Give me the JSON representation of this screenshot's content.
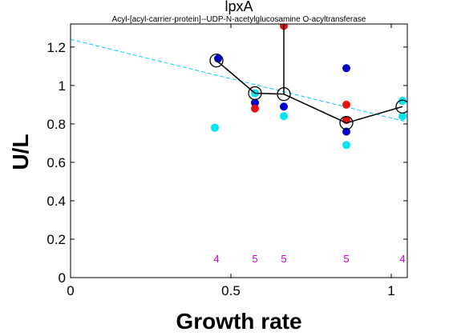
{
  "chart_data": {
    "type": "scatter",
    "title": "lpxA",
    "subtitle": "Acyl-[acyl-carrier-protein]--UDP-N-acetylglucosamine O-acyltransferase",
    "xlabel": "Growth rate",
    "ylabel": "U/L",
    "xlim": [
      0,
      1.05
    ],
    "ylim": [
      0,
      1.32
    ],
    "xticks": [
      0,
      0.5,
      1
    ],
    "xtick_labels": [
      "0",
      "0.5",
      "1"
    ],
    "yticks": [
      0,
      0.2,
      0.4,
      0.6,
      0.8,
      1,
      1.2
    ],
    "ytick_labels": [
      "0",
      "0.2",
      "0.4",
      "0.6",
      "0.8",
      "1",
      "1.2"
    ],
    "grid": false,
    "series": [
      {
        "style": "points",
        "color": "#0000cc",
        "points": [
          [
            0.46,
            1.14
          ],
          [
            0.575,
            0.91
          ],
          [
            0.665,
            0.89
          ],
          [
            0.86,
            0.76
          ],
          [
            0.86,
            1.09
          ]
        ]
      },
      {
        "style": "points",
        "color": "#e81010",
        "points": [
          [
            0.575,
            0.88
          ],
          [
            0.665,
            1.31
          ],
          [
            0.665,
            1.33
          ],
          [
            0.86,
            0.9
          ],
          [
            0.86,
            0.82
          ]
        ]
      },
      {
        "style": "points",
        "color": "#00e5ee",
        "points": [
          [
            0.45,
            0.78
          ],
          [
            0.575,
            0.96
          ],
          [
            0.665,
            0.84
          ],
          [
            0.86,
            0.69
          ],
          [
            1.035,
            0.92
          ],
          [
            1.035,
            0.84
          ]
        ]
      },
      {
        "style": "mean-line",
        "color": "#000000",
        "points": [
          [
            0.455,
            1.13
          ],
          [
            0.575,
            0.96
          ],
          [
            0.665,
            0.955
          ],
          [
            0.86,
            0.805
          ],
          [
            1.035,
            0.89
          ]
        ],
        "error_bars": [
          [
            0.665,
            0.955,
            1.33
          ]
        ]
      },
      {
        "style": "fit-line",
        "color": "#00ccee",
        "points": [
          [
            0,
            1.24
          ],
          [
            1.05,
            0.81
          ]
        ]
      }
    ],
    "counts": [
      {
        "x": 0.455,
        "label": "4"
      },
      {
        "x": 0.575,
        "label": "5"
      },
      {
        "x": 0.665,
        "label": "5"
      },
      {
        "x": 0.86,
        "label": "5"
      },
      {
        "x": 1.035,
        "label": "4"
      }
    ],
    "counts_y": 0.1
  }
}
